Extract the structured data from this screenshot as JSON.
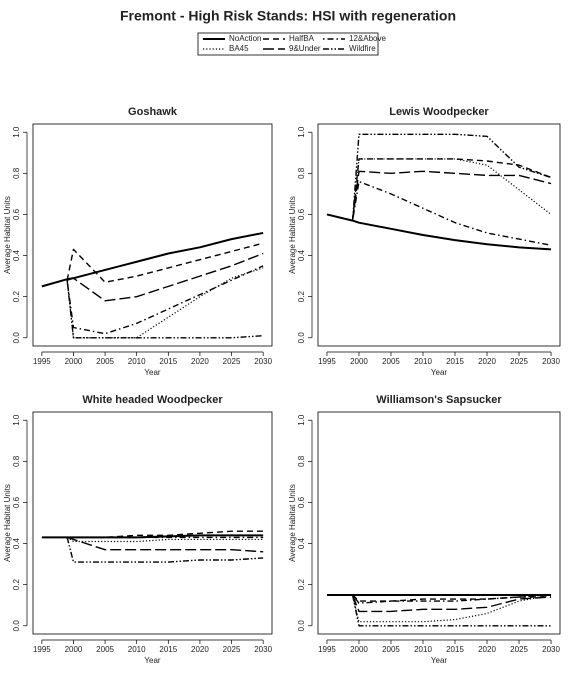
{
  "title": "Fremont  - High Risk Stands: HSI with regeneration",
  "chart_data": [
    {
      "type": "line",
      "title": "Goshawk",
      "x_label": "Year",
      "y_label": "Average Habitat Units",
      "x": [
        1995,
        1999,
        2000,
        2005,
        2010,
        2015,
        2020,
        2025,
        2030
      ],
      "xlim": [
        1993.6,
        2031.4
      ],
      "ylim": [
        -0.04,
        1.04
      ],
      "xticks": [
        1995,
        2000,
        2005,
        2010,
        2015,
        2020,
        2025,
        2030
      ],
      "yticks": [
        {
          "value": 0,
          "label": "0.0"
        },
        {
          "value": 0.2,
          "label": "0.2"
        },
        {
          "value": 0.4,
          "label": "0.4"
        },
        {
          "value": 0.6,
          "label": "0.6"
        },
        {
          "value": 0.8,
          "label": "0.8"
        },
        {
          "value": 1,
          "label": "1.0"
        }
      ],
      "series": [
        {
          "name": "NoAction",
          "color": "#000000",
          "linestyle": "solid",
          "linewidth": 2,
          "values": [
            0.25,
            0.285,
            0.29,
            0.33,
            0.37,
            0.41,
            0.44,
            0.48,
            0.51
          ]
        },
        {
          "name": "BA45",
          "color": "#000000",
          "linestyle": "dotted",
          "linewidth": 1.2,
          "values": [
            null,
            0.28,
            0.0,
            0.0,
            0.0,
            0.1,
            0.2,
            0.29,
            0.34
          ]
        },
        {
          "name": "HalfBA",
          "color": "#000000",
          "linestyle": "dashed",
          "linewidth": 1.4,
          "values": [
            null,
            0.28,
            0.43,
            0.27,
            0.3,
            0.34,
            0.38,
            0.42,
            0.46
          ]
        },
        {
          "name": "9&Under",
          "color": "#000000",
          "linestyle": "longdash",
          "linewidth": 1.4,
          "values": [
            null,
            0.28,
            0.29,
            0.18,
            0.2,
            0.25,
            0.3,
            0.35,
            0.41
          ]
        },
        {
          "name": "12&Above",
          "color": "#000000",
          "linestyle": "dotdash",
          "linewidth": 1.4,
          "values": [
            null,
            0.28,
            0.05,
            0.02,
            0.07,
            0.14,
            0.21,
            0.28,
            0.35
          ]
        },
        {
          "name": "Wildfire",
          "color": "#000000",
          "linestyle": "twodash",
          "linewidth": 1.4,
          "values": [
            null,
            0.28,
            0.0,
            0.0,
            0.0,
            0.0,
            0.0,
            0.0,
            0.01
          ]
        }
      ]
    },
    {
      "type": "line",
      "title": "Lewis Woodpecker",
      "x_label": "Year",
      "y_label": "Average Habitat Units",
      "x": [
        1995,
        1999,
        2000,
        2005,
        2010,
        2015,
        2020,
        2025,
        2030
      ],
      "xlim": [
        1993.6,
        2031.4
      ],
      "ylim": [
        -0.04,
        1.04
      ],
      "xticks": [
        1995,
        2000,
        2005,
        2010,
        2015,
        2020,
        2025,
        2030
      ],
      "yticks": [
        {
          "value": 0,
          "label": "0.0"
        },
        {
          "value": 0.2,
          "label": "0.2"
        },
        {
          "value": 0.4,
          "label": "0.4"
        },
        {
          "value": 0.6,
          "label": "0.6"
        },
        {
          "value": 0.8,
          "label": "0.8"
        },
        {
          "value": 1,
          "label": "1.0"
        }
      ],
      "series": [
        {
          "name": "NoAction",
          "color": "#000000",
          "linestyle": "solid",
          "linewidth": 2,
          "values": [
            0.6,
            0.57,
            0.56,
            0.53,
            0.5,
            0.475,
            0.455,
            0.44,
            0.43
          ]
        },
        {
          "name": "BA45",
          "color": "#000000",
          "linestyle": "dotted",
          "linewidth": 1.2,
          "values": [
            null,
            0.57,
            0.87,
            0.87,
            0.87,
            0.87,
            0.84,
            0.72,
            0.6
          ]
        },
        {
          "name": "HalfBA",
          "color": "#000000",
          "linestyle": "dashed",
          "linewidth": 1.4,
          "values": [
            null,
            0.57,
            0.87,
            0.87,
            0.87,
            0.87,
            0.86,
            0.84,
            0.78
          ]
        },
        {
          "name": "9&Under",
          "color": "#000000",
          "linestyle": "longdash",
          "linewidth": 1.4,
          "values": [
            null,
            0.57,
            0.81,
            0.8,
            0.81,
            0.8,
            0.79,
            0.79,
            0.75
          ]
        },
        {
          "name": "12&Above",
          "color": "#000000",
          "linestyle": "dotdash",
          "linewidth": 1.4,
          "values": [
            null,
            0.57,
            0.76,
            0.7,
            0.63,
            0.56,
            0.51,
            0.48,
            0.45
          ]
        },
        {
          "name": "Wildfire",
          "color": "#000000",
          "linestyle": "twodash",
          "linewidth": 1.4,
          "values": [
            null,
            0.57,
            0.99,
            0.99,
            0.99,
            0.99,
            0.98,
            0.83,
            0.78
          ]
        }
      ]
    },
    {
      "type": "line",
      "title": "White headed Woodpecker",
      "x_label": "Year",
      "y_label": "Average Habitat Units",
      "x": [
        1995,
        1999,
        2000,
        2005,
        2010,
        2015,
        2020,
        2025,
        2030
      ],
      "xlim": [
        1993.6,
        2031.4
      ],
      "ylim": [
        -0.04,
        1.04
      ],
      "xticks": [
        1995,
        2000,
        2005,
        2010,
        2015,
        2020,
        2025,
        2030
      ],
      "yticks": [
        {
          "value": 0,
          "label": "0.0"
        },
        {
          "value": 0.2,
          "label": "0.2"
        },
        {
          "value": 0.4,
          "label": "0.4"
        },
        {
          "value": 0.6,
          "label": "0.6"
        },
        {
          "value": 0.8,
          "label": "0.8"
        },
        {
          "value": 1,
          "label": "1.0"
        }
      ],
      "series": [
        {
          "name": "NoAction",
          "color": "#000000",
          "linestyle": "solid",
          "linewidth": 2,
          "values": [
            0.43,
            0.43,
            0.43,
            0.43,
            0.43,
            0.435,
            0.44,
            0.44,
            0.44
          ]
        },
        {
          "name": "BA45",
          "color": "#000000",
          "linestyle": "dotted",
          "linewidth": 1.2,
          "values": [
            null,
            0.43,
            0.41,
            0.41,
            0.41,
            0.42,
            0.42,
            0.42,
            0.42
          ]
        },
        {
          "name": "HalfBA",
          "color": "#000000",
          "linestyle": "dashed",
          "linewidth": 1.4,
          "values": [
            null,
            0.43,
            0.43,
            0.43,
            0.44,
            0.44,
            0.45,
            0.46,
            0.46
          ]
        },
        {
          "name": "9&Under",
          "color": "#000000",
          "linestyle": "longdash",
          "linewidth": 1.4,
          "values": [
            null,
            0.43,
            0.42,
            0.37,
            0.37,
            0.37,
            0.37,
            0.37,
            0.36
          ]
        },
        {
          "name": "12&Above",
          "color": "#000000",
          "linestyle": "dotdash",
          "linewidth": 1.4,
          "values": [
            null,
            0.43,
            0.43,
            0.43,
            0.43,
            0.43,
            0.43,
            0.43,
            0.43
          ]
        },
        {
          "name": "Wildfire",
          "color": "#000000",
          "linestyle": "twodash",
          "linewidth": 1.4,
          "values": [
            null,
            0.43,
            0.31,
            0.31,
            0.31,
            0.31,
            0.32,
            0.32,
            0.33
          ]
        }
      ]
    },
    {
      "type": "line",
      "title": "Williamson's Sapsucker",
      "x_label": "Year",
      "y_label": "Average Habitat Units",
      "x": [
        1995,
        1999,
        2000,
        2005,
        2010,
        2015,
        2020,
        2025,
        2030
      ],
      "xlim": [
        1993.6,
        2031.4
      ],
      "ylim": [
        -0.04,
        1.04
      ],
      "xticks": [
        1995,
        2000,
        2005,
        2010,
        2015,
        2020,
        2025,
        2030
      ],
      "yticks": [
        {
          "value": 0,
          "label": "0.0"
        },
        {
          "value": 0.2,
          "label": "0.2"
        },
        {
          "value": 0.4,
          "label": "0.4"
        },
        {
          "value": 0.6,
          "label": "0.6"
        },
        {
          "value": 0.8,
          "label": "0.8"
        },
        {
          "value": 1,
          "label": "1.0"
        }
      ],
      "series": [
        {
          "name": "NoAction",
          "color": "#000000",
          "linestyle": "solid",
          "linewidth": 2,
          "values": [
            0.15,
            0.15,
            0.15,
            0.15,
            0.15,
            0.15,
            0.15,
            0.15,
            0.15
          ]
        },
        {
          "name": "BA45",
          "color": "#000000",
          "linestyle": "dotted",
          "linewidth": 1.2,
          "values": [
            null,
            0.15,
            0.02,
            0.02,
            0.02,
            0.03,
            0.06,
            0.12,
            0.15
          ]
        },
        {
          "name": "HalfBA",
          "color": "#000000",
          "linestyle": "dashed",
          "linewidth": 1.4,
          "values": [
            null,
            0.15,
            0.12,
            0.12,
            0.13,
            0.13,
            0.13,
            0.14,
            0.14
          ]
        },
        {
          "name": "9&Under",
          "color": "#000000",
          "linestyle": "longdash",
          "linewidth": 1.4,
          "values": [
            null,
            0.15,
            0.07,
            0.07,
            0.08,
            0.08,
            0.09,
            0.13,
            0.14
          ]
        },
        {
          "name": "12&Above",
          "color": "#000000",
          "linestyle": "dotdash",
          "linewidth": 1.4,
          "values": [
            null,
            0.15,
            0.11,
            0.12,
            0.12,
            0.12,
            0.13,
            0.14,
            0.15
          ]
        },
        {
          "name": "Wildfire",
          "color": "#000000",
          "linestyle": "twodash",
          "linewidth": 1.4,
          "values": [
            null,
            0.15,
            0.0,
            0.0,
            0.0,
            0.0,
            0.0,
            0.0,
            0.0
          ]
        }
      ]
    }
  ]
}
